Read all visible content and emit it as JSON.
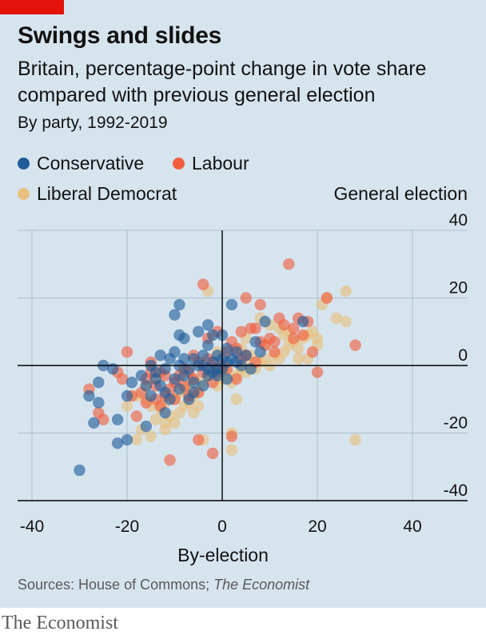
{
  "header": {
    "title": "Swings and slides",
    "subtitle": "Britain, percentage-point change in vote share compared with previous general election",
    "subtitle2": "By party, 1992-2019"
  },
  "legend": [
    {
      "label": "Conservative",
      "color": "#1f5c99"
    },
    {
      "label": "Labour",
      "color": "#f15e3e"
    },
    {
      "label": "Liberal Democrat",
      "color": "#e8c07d"
    }
  ],
  "footer": {
    "source_prefix": "Sources: House of Commons; ",
    "source_italic": "The Economist",
    "brand": "The Economist"
  },
  "chart_data": {
    "type": "scatter",
    "title": "Swings and slides",
    "xlabel": "By-election",
    "ylabel": "General election",
    "xlim": [
      -40,
      40
    ],
    "ylim": [
      -40,
      40
    ],
    "xticks": [
      "-40",
      "-20",
      "0",
      "20",
      "40"
    ],
    "yticks": [
      "40",
      "20",
      "0",
      "-20",
      "-40"
    ],
    "grid": true,
    "legend_position": "top-left",
    "series": [
      {
        "name": "Liberal Democrat",
        "color": "#e8c07d",
        "points": [
          [
            -18,
            -22
          ],
          [
            -17,
            -19
          ],
          [
            -15,
            -21
          ],
          [
            -14,
            -16
          ],
          [
            -12,
            -17
          ],
          [
            -10,
            -17
          ],
          [
            -11,
            -15
          ],
          [
            -13,
            -13
          ],
          [
            -9,
            -14
          ],
          [
            -8,
            -12
          ],
          [
            -7,
            -11
          ],
          [
            -6,
            -9
          ],
          [
            -5,
            -8
          ],
          [
            -16,
            -10
          ],
          [
            -15,
            -12
          ],
          [
            -12,
            -11
          ],
          [
            -10,
            -10
          ],
          [
            -9,
            -8
          ],
          [
            -7,
            -6
          ],
          [
            -6,
            -4
          ],
          [
            -4,
            -5
          ],
          [
            -3,
            -3
          ],
          [
            -2,
            -1
          ],
          [
            -1,
            -6
          ],
          [
            0,
            -4
          ],
          [
            1,
            -2
          ],
          [
            2,
            -5
          ],
          [
            3,
            -10
          ],
          [
            3,
            -3
          ],
          [
            4,
            -1
          ],
          [
            5,
            -2
          ],
          [
            6,
            0
          ],
          [
            7,
            -1
          ],
          [
            8,
            1
          ],
          [
            9,
            2
          ],
          [
            10,
            0
          ],
          [
            11,
            3
          ],
          [
            12,
            2
          ],
          [
            13,
            4
          ],
          [
            14,
            6
          ],
          [
            15,
            7
          ],
          [
            16,
            5
          ],
          [
            17,
            8
          ],
          [
            18,
            9
          ],
          [
            19,
            10
          ],
          [
            20,
            6
          ],
          [
            21,
            18
          ],
          [
            22,
            20
          ],
          [
            24,
            14
          ],
          [
            26,
            22
          ],
          [
            26,
            13
          ],
          [
            28,
            -22
          ],
          [
            16,
            2
          ],
          [
            18,
            2
          ],
          [
            20,
            8
          ],
          [
            14,
            10
          ],
          [
            12,
            11
          ],
          [
            10,
            12
          ],
          [
            8,
            14
          ],
          [
            5,
            8
          ],
          [
            4,
            5
          ],
          [
            2,
            -20
          ],
          [
            2,
            -25
          ],
          [
            -4,
            -22
          ],
          [
            -3,
            22
          ],
          [
            -8,
            -7
          ],
          [
            -14,
            -4
          ],
          [
            -18,
            -9
          ],
          [
            -12,
            -19
          ],
          [
            -5,
            -12
          ],
          [
            -1,
            4
          ],
          [
            6,
            3
          ],
          [
            9,
            6
          ],
          [
            13,
            9
          ],
          [
            -20,
            -12
          ],
          [
            -16,
            -6
          ],
          [
            -6,
            -14
          ]
        ]
      },
      {
        "name": "Labour",
        "color": "#f15e3e",
        "points": [
          [
            -28,
            -7
          ],
          [
            -26,
            -14
          ],
          [
            -25,
            -16
          ],
          [
            -21,
            -4
          ],
          [
            -20,
            4
          ],
          [
            -18,
            -15
          ],
          [
            -17,
            -8
          ],
          [
            -16,
            -4
          ],
          [
            -15,
            -2
          ],
          [
            -14,
            -6
          ],
          [
            -14,
            -10
          ],
          [
            -13,
            -12
          ],
          [
            -12,
            -9
          ],
          [
            -12,
            -3
          ],
          [
            -11,
            -7
          ],
          [
            -10,
            -5
          ],
          [
            -10,
            -10
          ],
          [
            -9,
            -3
          ],
          [
            -8,
            -6
          ],
          [
            -7,
            -2
          ],
          [
            -7,
            -9
          ],
          [
            -6,
            -4
          ],
          [
            -5,
            1
          ],
          [
            -5,
            -8
          ],
          [
            -4,
            -2
          ],
          [
            -3,
            2
          ],
          [
            -2,
            1
          ],
          [
            -2,
            -5
          ],
          [
            -1,
            -2
          ],
          [
            -1,
            10
          ],
          [
            0,
            0
          ],
          [
            1,
            -1
          ],
          [
            1,
            4
          ],
          [
            2,
            7
          ],
          [
            3,
            5
          ],
          [
            3,
            -4
          ],
          [
            4,
            10
          ],
          [
            5,
            3
          ],
          [
            5,
            20
          ],
          [
            6,
            11
          ],
          [
            7,
            11
          ],
          [
            8,
            18
          ],
          [
            9,
            6
          ],
          [
            10,
            8
          ],
          [
            11,
            7
          ],
          [
            12,
            14
          ],
          [
            13,
            12
          ],
          [
            14,
            30
          ],
          [
            15,
            11
          ],
          [
            16,
            14
          ],
          [
            17,
            9
          ],
          [
            18,
            13
          ],
          [
            19,
            4
          ],
          [
            20,
            -2
          ],
          [
            22,
            20
          ],
          [
            28,
            6
          ],
          [
            -4,
            24
          ],
          [
            -5,
            -22
          ],
          [
            -2,
            -26
          ],
          [
            2,
            -21
          ],
          [
            -11,
            -28
          ],
          [
            -15,
            1
          ],
          [
            -3,
            8
          ],
          [
            7,
            1
          ],
          [
            11,
            4
          ],
          [
            15,
            8
          ],
          [
            -19,
            -9
          ],
          [
            -8,
            -1
          ],
          [
            -6,
            3
          ],
          [
            4,
            2
          ],
          [
            8,
            7
          ],
          [
            -13,
            -2
          ],
          [
            -16,
            -11
          ],
          [
            -22,
            -2
          ]
        ]
      },
      {
        "name": "Conservative",
        "color": "#1f5c99",
        "points": [
          [
            -30,
            -31
          ],
          [
            -28,
            -9
          ],
          [
            -27,
            -17
          ],
          [
            -26,
            -11
          ],
          [
            -26,
            -5
          ],
          [
            -25,
            0
          ],
          [
            -23,
            -1
          ],
          [
            -22,
            -23
          ],
          [
            -20,
            -22
          ],
          [
            -20,
            -9
          ],
          [
            -22,
            -16
          ],
          [
            -19,
            -5
          ],
          [
            -17,
            -3
          ],
          [
            -16,
            -6
          ],
          [
            -15,
            0
          ],
          [
            -15,
            -9
          ],
          [
            -14,
            -4
          ],
          [
            -13,
            3
          ],
          [
            -13,
            -6
          ],
          [
            -12,
            -1
          ],
          [
            -12,
            -8
          ],
          [
            -11,
            2
          ],
          [
            -11,
            -10
          ],
          [
            -10,
            -4
          ],
          [
            -10,
            4
          ],
          [
            -9,
            0
          ],
          [
            -9,
            9
          ],
          [
            -9,
            -7
          ],
          [
            -8,
            2
          ],
          [
            -8,
            -3
          ],
          [
            -7,
            -1
          ],
          [
            -6,
            2
          ],
          [
            -6,
            -5
          ],
          [
            -5,
            0
          ],
          [
            -5,
            10
          ],
          [
            -4,
            3
          ],
          [
            -4,
            -6
          ],
          [
            -3,
            -3
          ],
          [
            -3,
            6
          ],
          [
            -2,
            1
          ],
          [
            -2,
            -2
          ],
          [
            -1,
            -1
          ],
          [
            -1,
            3
          ],
          [
            0,
            9
          ],
          [
            0,
            -1
          ],
          [
            1,
            5
          ],
          [
            1,
            1
          ],
          [
            2,
            2
          ],
          [
            2,
            18
          ],
          [
            3,
            4
          ],
          [
            4,
            0
          ],
          [
            5,
            3
          ],
          [
            6,
            -1
          ],
          [
            7,
            7
          ],
          [
            8,
            4
          ],
          [
            9,
            13
          ],
          [
            17,
            13
          ],
          [
            -10,
            15
          ],
          [
            -9,
            18
          ],
          [
            -16,
            -18
          ],
          [
            -6,
            -8
          ],
          [
            -3,
            -1
          ],
          [
            -1,
            -3
          ],
          [
            1,
            -4
          ],
          [
            -7,
            -10
          ],
          [
            -12,
            -14
          ],
          [
            -4,
            0
          ],
          [
            3,
            1
          ],
          [
            -8,
            8
          ],
          [
            -2,
            9
          ],
          [
            0,
            2
          ],
          [
            -14,
            -2
          ],
          [
            -3,
            12
          ]
        ]
      }
    ]
  }
}
